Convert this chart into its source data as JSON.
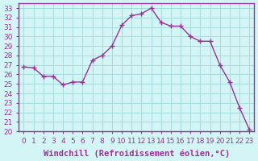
{
  "x": [
    0,
    1,
    2,
    3,
    4,
    5,
    6,
    7,
    8,
    9,
    10,
    11,
    12,
    13,
    14,
    15,
    16,
    17,
    18,
    19,
    20,
    21,
    22,
    23
  ],
  "y": [
    26.8,
    26.7,
    25.8,
    25.8,
    24.9,
    25.2,
    25.2,
    27.5,
    28.0,
    29.0,
    31.2,
    32.2,
    32.4,
    33.0,
    31.5,
    31.1,
    31.1,
    30.0,
    29.5,
    29.5,
    27.0,
    25.2,
    22.5,
    20.2
  ],
  "line_color": "#993399",
  "marker": "+",
  "marker_size": 4,
  "bg_color": "#d4f5f5",
  "grid_color": "#aadddd",
  "xlabel": "Windchill (Refroidissement éolien,°C)",
  "xlabel_fontsize": 7.5,
  "tick_fontsize": 6.5,
  "ylim": [
    20,
    33.5
  ],
  "xlim": [
    -0.5,
    23.5
  ],
  "yticks": [
    20,
    21,
    22,
    23,
    24,
    25,
    26,
    27,
    28,
    29,
    30,
    31,
    32,
    33
  ],
  "xticks": [
    0,
    1,
    2,
    3,
    4,
    5,
    6,
    7,
    8,
    9,
    10,
    11,
    12,
    13,
    14,
    15,
    16,
    17,
    18,
    19,
    20,
    21,
    22,
    23
  ],
  "spine_color": "#993399",
  "label_color": "#993399"
}
